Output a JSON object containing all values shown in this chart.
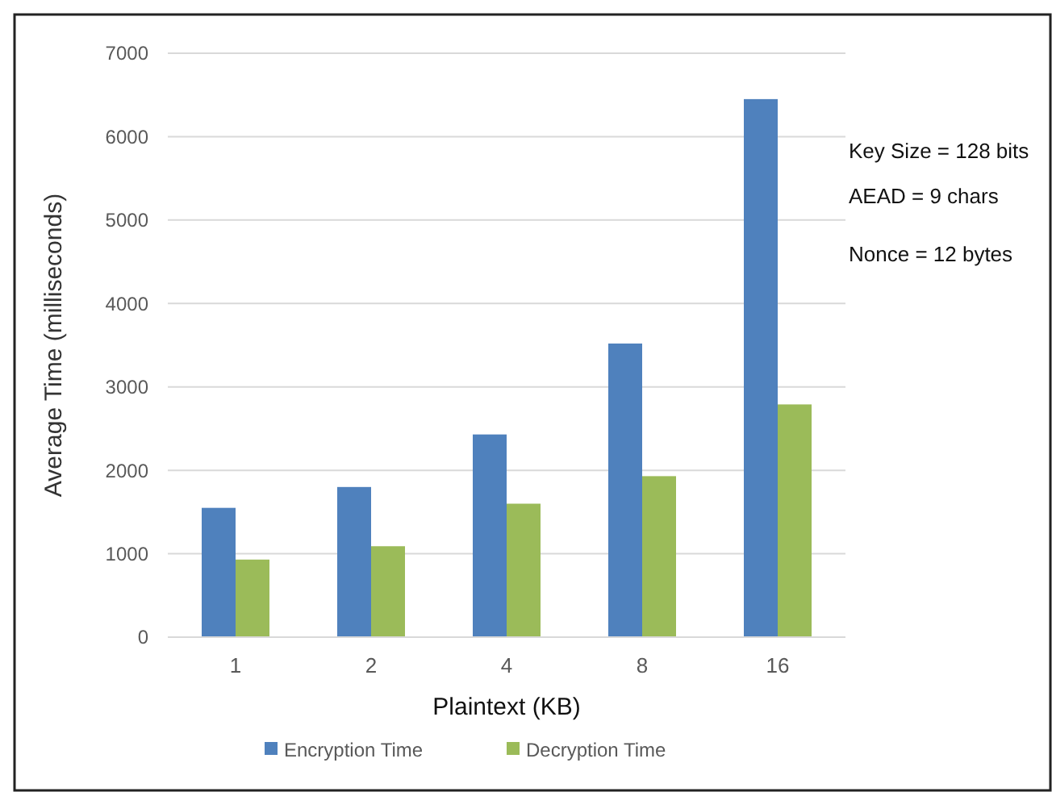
{
  "chart_data": {
    "type": "bar",
    "xlabel": "Plaintext (KB)",
    "ylabel": "Average Time (milliseconds)",
    "categories": [
      "1",
      "2",
      "4",
      "8",
      "16"
    ],
    "series": [
      {
        "name": "Encryption Time",
        "color": "#4f81bd",
        "values": [
          1550,
          1800,
          2430,
          3520,
          6450
        ]
      },
      {
        "name": "Decryption Time",
        "color": "#9bbb59",
        "values": [
          930,
          1090,
          1600,
          1930,
          2790
        ]
      }
    ],
    "ylim": [
      0,
      7000
    ],
    "yticks": [
      0,
      1000,
      2000,
      3000,
      4000,
      5000,
      6000,
      7000
    ],
    "grid": "y",
    "legend": "bottom",
    "annotations": [
      "Key Size = 128 bits",
      "AEAD = 9 chars",
      "Nonce = 12 bytes"
    ]
  }
}
